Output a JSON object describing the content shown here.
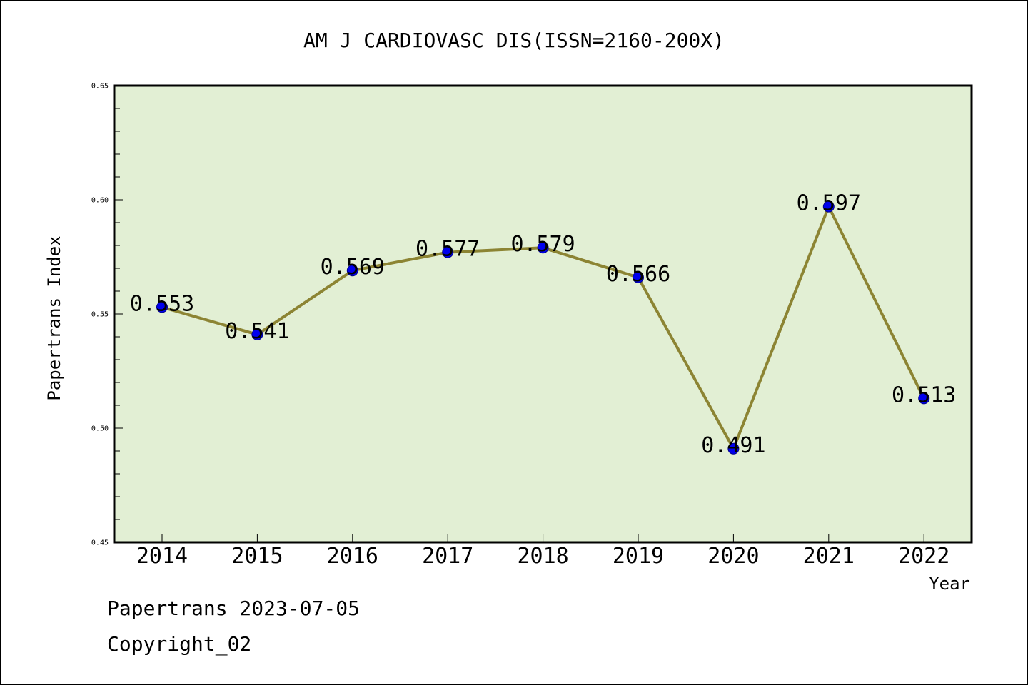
{
  "chart_data": {
    "type": "line",
    "title": "AM J CARDIOVASC DIS(ISSN=2160-200X)",
    "xlabel": "Year",
    "ylabel": "Papertrans Index",
    "categories": [
      "2014",
      "2015",
      "2016",
      "2017",
      "2018",
      "2019",
      "2020",
      "2021",
      "2022"
    ],
    "series": [
      {
        "values": [
          0.553,
          0.541,
          0.569,
          0.577,
          0.579,
          0.566,
          0.491,
          0.597,
          0.513
        ]
      }
    ],
    "data_labels": [
      "0.553",
      "0.541",
      "0.569",
      "0.577",
      "0.579",
      "0.566",
      "0.491",
      "0.597",
      "0.513"
    ],
    "ylim": [
      0.45,
      0.65
    ],
    "yticks": [
      "0.45",
      "0.50",
      "0.55",
      "0.60",
      "0.65"
    ],
    "grid": false,
    "colors": {
      "plot_background": "#e2efd4",
      "line": "#8c8433",
      "marker": "#0000ee",
      "marker_edge": "#00008b"
    }
  },
  "footer": {
    "line1": "Papertrans 2023-07-05",
    "line2": "Copyright_02"
  }
}
